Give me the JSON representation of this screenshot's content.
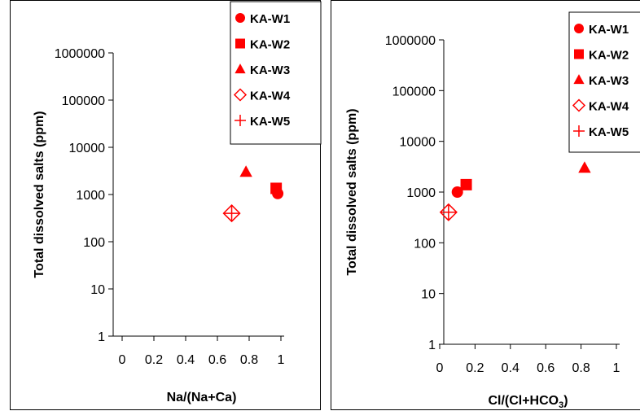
{
  "chart_data": [
    {
      "type": "scatter",
      "xlabel": "Na/(Na+Ca)",
      "ylabel": "Total dissolved salts (ppm)",
      "xlim": [
        0,
        1
      ],
      "ylim": [
        1,
        1000000
      ],
      "yscale": "log",
      "x_ticks": [
        "0",
        "0.2",
        "0.4",
        "0.6",
        "0.8",
        "1"
      ],
      "y_ticks": [
        "1",
        "10",
        "100",
        "1000",
        "10000",
        "100000",
        "1000000"
      ],
      "grid": false,
      "legend_position": "top-right",
      "series": [
        {
          "name": "KA-W1",
          "marker": "circle",
          "x": 0.98,
          "y": 1050
        },
        {
          "name": "KA-W2",
          "marker": "square",
          "x": 0.97,
          "y": 1350
        },
        {
          "name": "KA-W3",
          "marker": "triangle",
          "x": 0.78,
          "y": 3000
        },
        {
          "name": "KA-W4",
          "marker": "diamond-open",
          "x": 0.69,
          "y": 400
        },
        {
          "name": "KA-W5",
          "marker": "plus",
          "x": 0.69,
          "y": 400
        }
      ]
    },
    {
      "type": "scatter",
      "xlabel": "Cl/(Cl+HCO3)",
      "ylabel": "Total dissolved salts (ppm)",
      "xlim": [
        0,
        1
      ],
      "ylim": [
        1,
        1000000
      ],
      "yscale": "log",
      "x_ticks": [
        "0",
        "0.2",
        "0.4",
        "0.6",
        "0.8",
        "1"
      ],
      "y_ticks": [
        "1",
        "10",
        "100",
        "1000",
        "10000",
        "100000",
        "1000000"
      ],
      "grid": false,
      "legend_position": "top-right",
      "series": [
        {
          "name": "KA-W1",
          "marker": "circle",
          "x": 0.1,
          "y": 1000
        },
        {
          "name": "KA-W2",
          "marker": "square",
          "x": 0.15,
          "y": 1400
        },
        {
          "name": "KA-W3",
          "marker": "triangle",
          "x": 0.82,
          "y": 3000
        },
        {
          "name": "KA-W4",
          "marker": "diamond-open",
          "x": 0.05,
          "y": 400
        },
        {
          "name": "KA-W5",
          "marker": "plus",
          "x": 0.05,
          "y": 400
        }
      ]
    }
  ],
  "colors": {
    "marker": "#ff0000",
    "axis": "#000000"
  }
}
